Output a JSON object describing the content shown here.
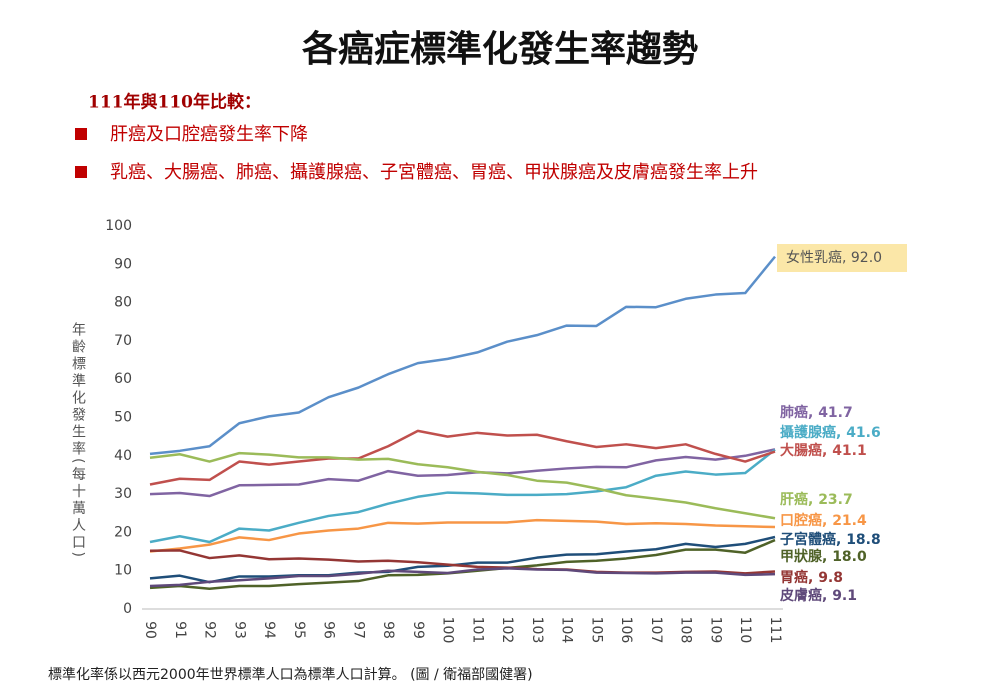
{
  "chart_data": {
    "type": "line",
    "title": "各癌症標準化發生率趨勢",
    "subtitle": "111年與110年比較：",
    "annotations": [
      "肝癌及口腔癌發生率下降",
      "乳癌、大腸癌、肺癌、攝護腺癌、子宮體癌、胃癌、甲狀腺癌及皮膚癌發生率上升"
    ],
    "y_label": "年齡標準化發生率(每十萬人口)",
    "footnote": "標準化率係以西元2000年世界標準人口為標準人口計算。 (圖 / 衛福部國健署)",
    "categories": [
      "90",
      "91",
      "92",
      "93",
      "94",
      "95",
      "96",
      "97",
      "98",
      "99",
      "100",
      "101",
      "102",
      "103",
      "104",
      "105",
      "106",
      "107",
      "108",
      "109",
      "110",
      "111"
    ],
    "ylim": [
      0,
      100
    ],
    "yticks": [
      0,
      10,
      20,
      30,
      40,
      50,
      60,
      70,
      80,
      90,
      100
    ],
    "grid": false,
    "series": [
      {
        "label": "女性乳癌, 92.0",
        "color": "#5b8fc9",
        "values": [
          40.5,
          41.3,
          42.5,
          48.5,
          50.3,
          51.3,
          55.3,
          57.8,
          61.3,
          64.2,
          65.3,
          67,
          69.8,
          71.5,
          74,
          73.9,
          78.9,
          78.8,
          81,
          82.1,
          82.5,
          92.0
        ]
      },
      {
        "label": "肺癌, 41.7",
        "color": "#8064a2",
        "values": [
          30,
          30.3,
          29.5,
          32.3,
          32.4,
          32.5,
          33.9,
          33.5,
          36,
          34.8,
          35,
          35.7,
          35.4,
          36.1,
          36.7,
          37.1,
          37,
          38.8,
          39.7,
          39,
          40,
          41.7
        ]
      },
      {
        "label": "攝護腺癌, 41.6",
        "color": "#4bacc6",
        "values": [
          17.5,
          19,
          17.5,
          21,
          20.5,
          22.5,
          24.3,
          25.3,
          27.5,
          29.3,
          30.4,
          30.2,
          29.8,
          29.8,
          30,
          30.7,
          31.8,
          34.8,
          35.9,
          35.1,
          35.5,
          41.6
        ]
      },
      {
        "label": "大腸癌, 41.1",
        "color": "#c0504d",
        "values": [
          32.5,
          34,
          33.7,
          38.5,
          37.7,
          38.5,
          39.3,
          39.3,
          42.5,
          46.5,
          45,
          46,
          45.3,
          45.5,
          43.8,
          42.3,
          43,
          42,
          43,
          40.5,
          38.5,
          41.1
        ]
      },
      {
        "label": "肝癌, 23.7",
        "color": "#9bbb59",
        "values": [
          39.5,
          40.4,
          38.5,
          40.7,
          40.3,
          39.6,
          39.6,
          39,
          39.2,
          37.8,
          37,
          35.8,
          35,
          33.5,
          33,
          31.5,
          29.7,
          28.8,
          27.8,
          26.3,
          25,
          23.7
        ]
      },
      {
        "label": "口腔癌, 21.4",
        "color": "#f79646",
        "values": [
          15,
          15.8,
          16.8,
          18.7,
          18,
          19.7,
          20.5,
          21,
          22.5,
          22.3,
          22.6,
          22.6,
          22.6,
          23.2,
          23,
          22.8,
          22.2,
          22.4,
          22.2,
          21.8,
          21.6,
          21.4
        ]
      },
      {
        "label": "子宮體癌, 18.8",
        "color": "#1f4e79",
        "values": [
          8,
          8.7,
          7,
          8.5,
          8.5,
          8.8,
          8.8,
          9.5,
          9.7,
          11,
          11.3,
          12.1,
          12.1,
          13.4,
          14.2,
          14.3,
          15,
          15.6,
          17,
          16.2,
          17,
          18.8
        ]
      },
      {
        "label": "甲狀腺, 18.0",
        "color": "#4f6228",
        "values": [
          5.5,
          6,
          5.3,
          6,
          6,
          6.5,
          6.9,
          7.3,
          8.8,
          8.9,
          9.3,
          10,
          10.7,
          11.4,
          12.3,
          12.6,
          13.2,
          14.1,
          15.5,
          15.5,
          14.7,
          18.0
        ]
      },
      {
        "label": "胃癌, 9.8",
        "color": "#943634",
        "values": [
          15.2,
          15.3,
          13.3,
          14,
          13,
          13.2,
          12.9,
          12.4,
          12.6,
          12.2,
          11.6,
          11,
          10.8,
          10.4,
          10.3,
          9.7,
          9.5,
          9.5,
          9.7,
          9.8,
          9.3,
          9.8
        ]
      },
      {
        "label": "皮膚癌, 9.1",
        "color": "#5f497a",
        "values": [
          6,
          6.3,
          7.1,
          7.5,
          8,
          8.6,
          8.6,
          9.2,
          10,
          9.7,
          9.4,
          10.3,
          10.6,
          10.3,
          10.2,
          9.5,
          9.4,
          9.3,
          9.5,
          9.5,
          8.9,
          9.1
        ]
      }
    ]
  }
}
